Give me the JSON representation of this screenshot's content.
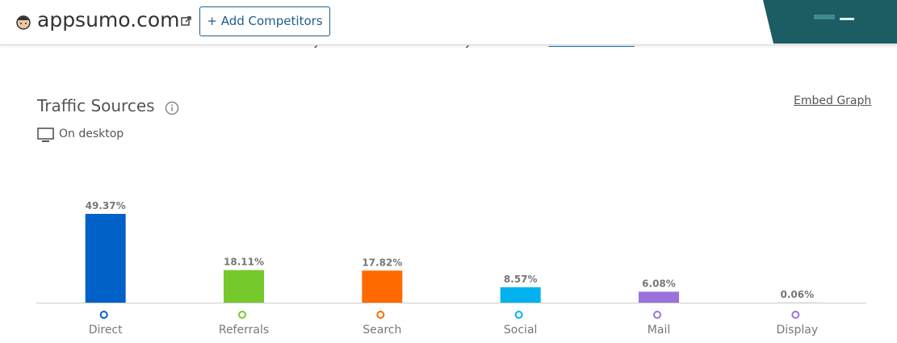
{
  "header": {
    "site": "appsumo.com",
    "add_button": "+ Add Competitors"
  },
  "notice": {
    "text": "What do you think about our country breakdown?",
    "link": "Send Feedback"
  },
  "panel": {
    "embed_link": "Embed Graph",
    "device": "On desktop"
  },
  "chart_data": {
    "type": "bar",
    "title": "Traffic Sources",
    "categories": [
      "Direct",
      "Referrals",
      "Search",
      "Social",
      "Mail",
      "Display"
    ],
    "values": [
      49.37,
      18.11,
      17.82,
      8.57,
      6.08,
      0.06
    ],
    "value_labels": [
      "49.37%",
      "18.11%",
      "17.82%",
      "8.57%",
      "6.08%",
      "0.06%"
    ],
    "colors": [
      "#0062c9",
      "#76c92c",
      "#ff6a00",
      "#00b3f0",
      "#9b72dc",
      "#9b72dc"
    ]
  }
}
